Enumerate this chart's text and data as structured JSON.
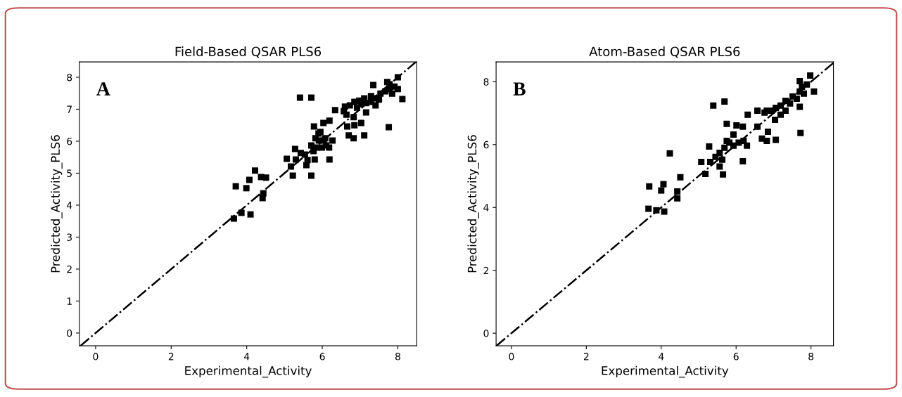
{
  "chart_data": [
    {
      "type": "scatter",
      "title": "Field-Based QSAR PLS6",
      "xlabel": "Experimental_Activity",
      "ylabel": "Predicted_Activity_PLS6",
      "annotations": [
        "A"
      ],
      "marker": "square",
      "grid": false,
      "legend": false,
      "xlim": [
        -0.43,
        8.5
      ],
      "ylim": [
        -0.4,
        8.48
      ],
      "xticks": [
        0,
        2,
        4,
        6,
        8
      ],
      "yticks": [
        0,
        1,
        2,
        3,
        4,
        5,
        6,
        7,
        8
      ],
      "series": [
        {
          "color": "#000000",
          "x": [
            3.66,
            3.86,
            4.1,
            3.71,
            3.99,
            4.07,
            4.22,
            4.38,
            4.51,
            4.44,
            4.42,
            5.41,
            5.71,
            7.35,
            7.72,
            8.0,
            8.12,
            8.0,
            7.76,
            7.11,
            6.83,
            6.7,
            7.03,
            6.85,
            6.66,
            6.34,
            6.57,
            6.64,
            6.19,
            6.03,
            5.78,
            5.95,
            6.19,
            5.71,
            5.22,
            5.28,
            5.06,
            5.17,
            5.3,
            5.43,
            5.54,
            5.61,
            5.58,
            5.8,
            5.77,
            5.82,
            5.91,
            6.04,
            6.18,
            6.27,
            6.1,
            5.99,
            5.86,
            5.71,
            5.9,
            6.08,
            6.73,
            6.85,
            6.98,
            7.11,
            7.16,
            7.29,
            7.41,
            7.54,
            7.67,
            7.78,
            7.85,
            7.91,
            7.78,
            7.41,
            7.16,
            6.92,
            7.03,
            7.29,
            7.5,
            6.83,
            6.6
          ],
          "values": [
            3.58,
            3.76,
            3.71,
            4.59,
            4.53,
            4.79,
            5.08,
            4.88,
            4.86,
            4.37,
            4.22,
            7.36,
            7.36,
            7.76,
            7.85,
            8.0,
            7.32,
            7.63,
            6.44,
            6.18,
            6.09,
            6.18,
            6.57,
            6.5,
            6.46,
            6.97,
            6.94,
            6.83,
            6.64,
            6.57,
            6.46,
            6.29,
            5.43,
            4.92,
            4.92,
            5.76,
            5.45,
            5.21,
            5.43,
            5.63,
            5.58,
            5.41,
            5.25,
            5.43,
            5.69,
            6.09,
            6.02,
            6.02,
            5.8,
            6.02,
            5.87,
            5.8,
            5.8,
            5.87,
            6.24,
            6.09,
            7.12,
            7.23,
            7.27,
            7.34,
            7.19,
            7.41,
            7.34,
            7.49,
            7.56,
            7.63,
            7.49,
            7.71,
            7.78,
            7.12,
            6.9,
            7.05,
            7.16,
            7.23,
            7.3,
            6.75,
            7.08
          ]
        },
        {
          "type": "line",
          "color": "#000000",
          "line_style": "dashdot",
          "marker": "none",
          "x": [
            -0.4,
            8.48
          ],
          "values": [
            -0.4,
            8.48
          ]
        }
      ]
    },
    {
      "type": "scatter",
      "title": "Atom-Based QSAR PLS6",
      "xlabel": "Experimental_Activity",
      "ylabel": "Predicted_Activity_PLS6",
      "annotations": [
        "B"
      ],
      "marker": "square",
      "grid": false,
      "legend": false,
      "xlim": [
        -0.41,
        8.6
      ],
      "ylim": [
        -0.4,
        8.63
      ],
      "xticks": [
        0,
        2,
        4,
        6,
        8
      ],
      "yticks": [
        0,
        2,
        4,
        6,
        8
      ],
      "series": [
        {
          "color": "#000000",
          "x": [
            3.68,
            3.66,
            3.87,
            4.08,
            4.0,
            4.06,
            4.23,
            4.43,
            4.43,
            4.51,
            5.39,
            5.69,
            5.28,
            5.07,
            5.18,
            5.65,
            6.18,
            5.75,
            6.01,
            6.18,
            5.93,
            6.31,
            6.57,
            6.57,
            6.69,
            6.82,
            6.85,
            7.06,
            7.72,
            7.7,
            5.45,
            5.56,
            5.69,
            5.82,
            5.93,
            6.07,
            6.2,
            6.29,
            5.75,
            5.63,
            5.56,
            5.31,
            6.76,
            6.95,
            7.06,
            7.19,
            7.32,
            7.44,
            7.51,
            7.62,
            7.7,
            7.76,
            7.89,
            7.98,
            8.08,
            7.81,
            7.04,
            7.32,
            7.19,
            6.82,
            7.7
          ],
          "values": [
            4.67,
            3.96,
            3.91,
            3.87,
            4.54,
            4.74,
            5.72,
            4.51,
            4.29,
            4.96,
            7.24,
            7.37,
            5.94,
            5.45,
            5.07,
            5.05,
            5.47,
            6.66,
            6.61,
            6.57,
            6.32,
            6.95,
            7.08,
            6.57,
            6.19,
            6.12,
            6.41,
            6.15,
            6.37,
            7.2,
            5.61,
            5.74,
            5.9,
            6.06,
            5.97,
            6.06,
            6.12,
            5.97,
            6.12,
            5.52,
            5.3,
            5.45,
            7.02,
            7.08,
            7.17,
            7.24,
            7.39,
            7.31,
            7.53,
            7.46,
            7.69,
            7.84,
            7.91,
            8.2,
            7.69,
            7.62,
            6.79,
            7.08,
            6.95,
            7.08,
            8.02
          ]
        },
        {
          "type": "line",
          "color": "#000000",
          "line_style": "dashdot",
          "marker": "none",
          "x": [
            -0.4,
            8.6
          ],
          "values": [
            -0.4,
            8.6
          ]
        }
      ]
    }
  ]
}
